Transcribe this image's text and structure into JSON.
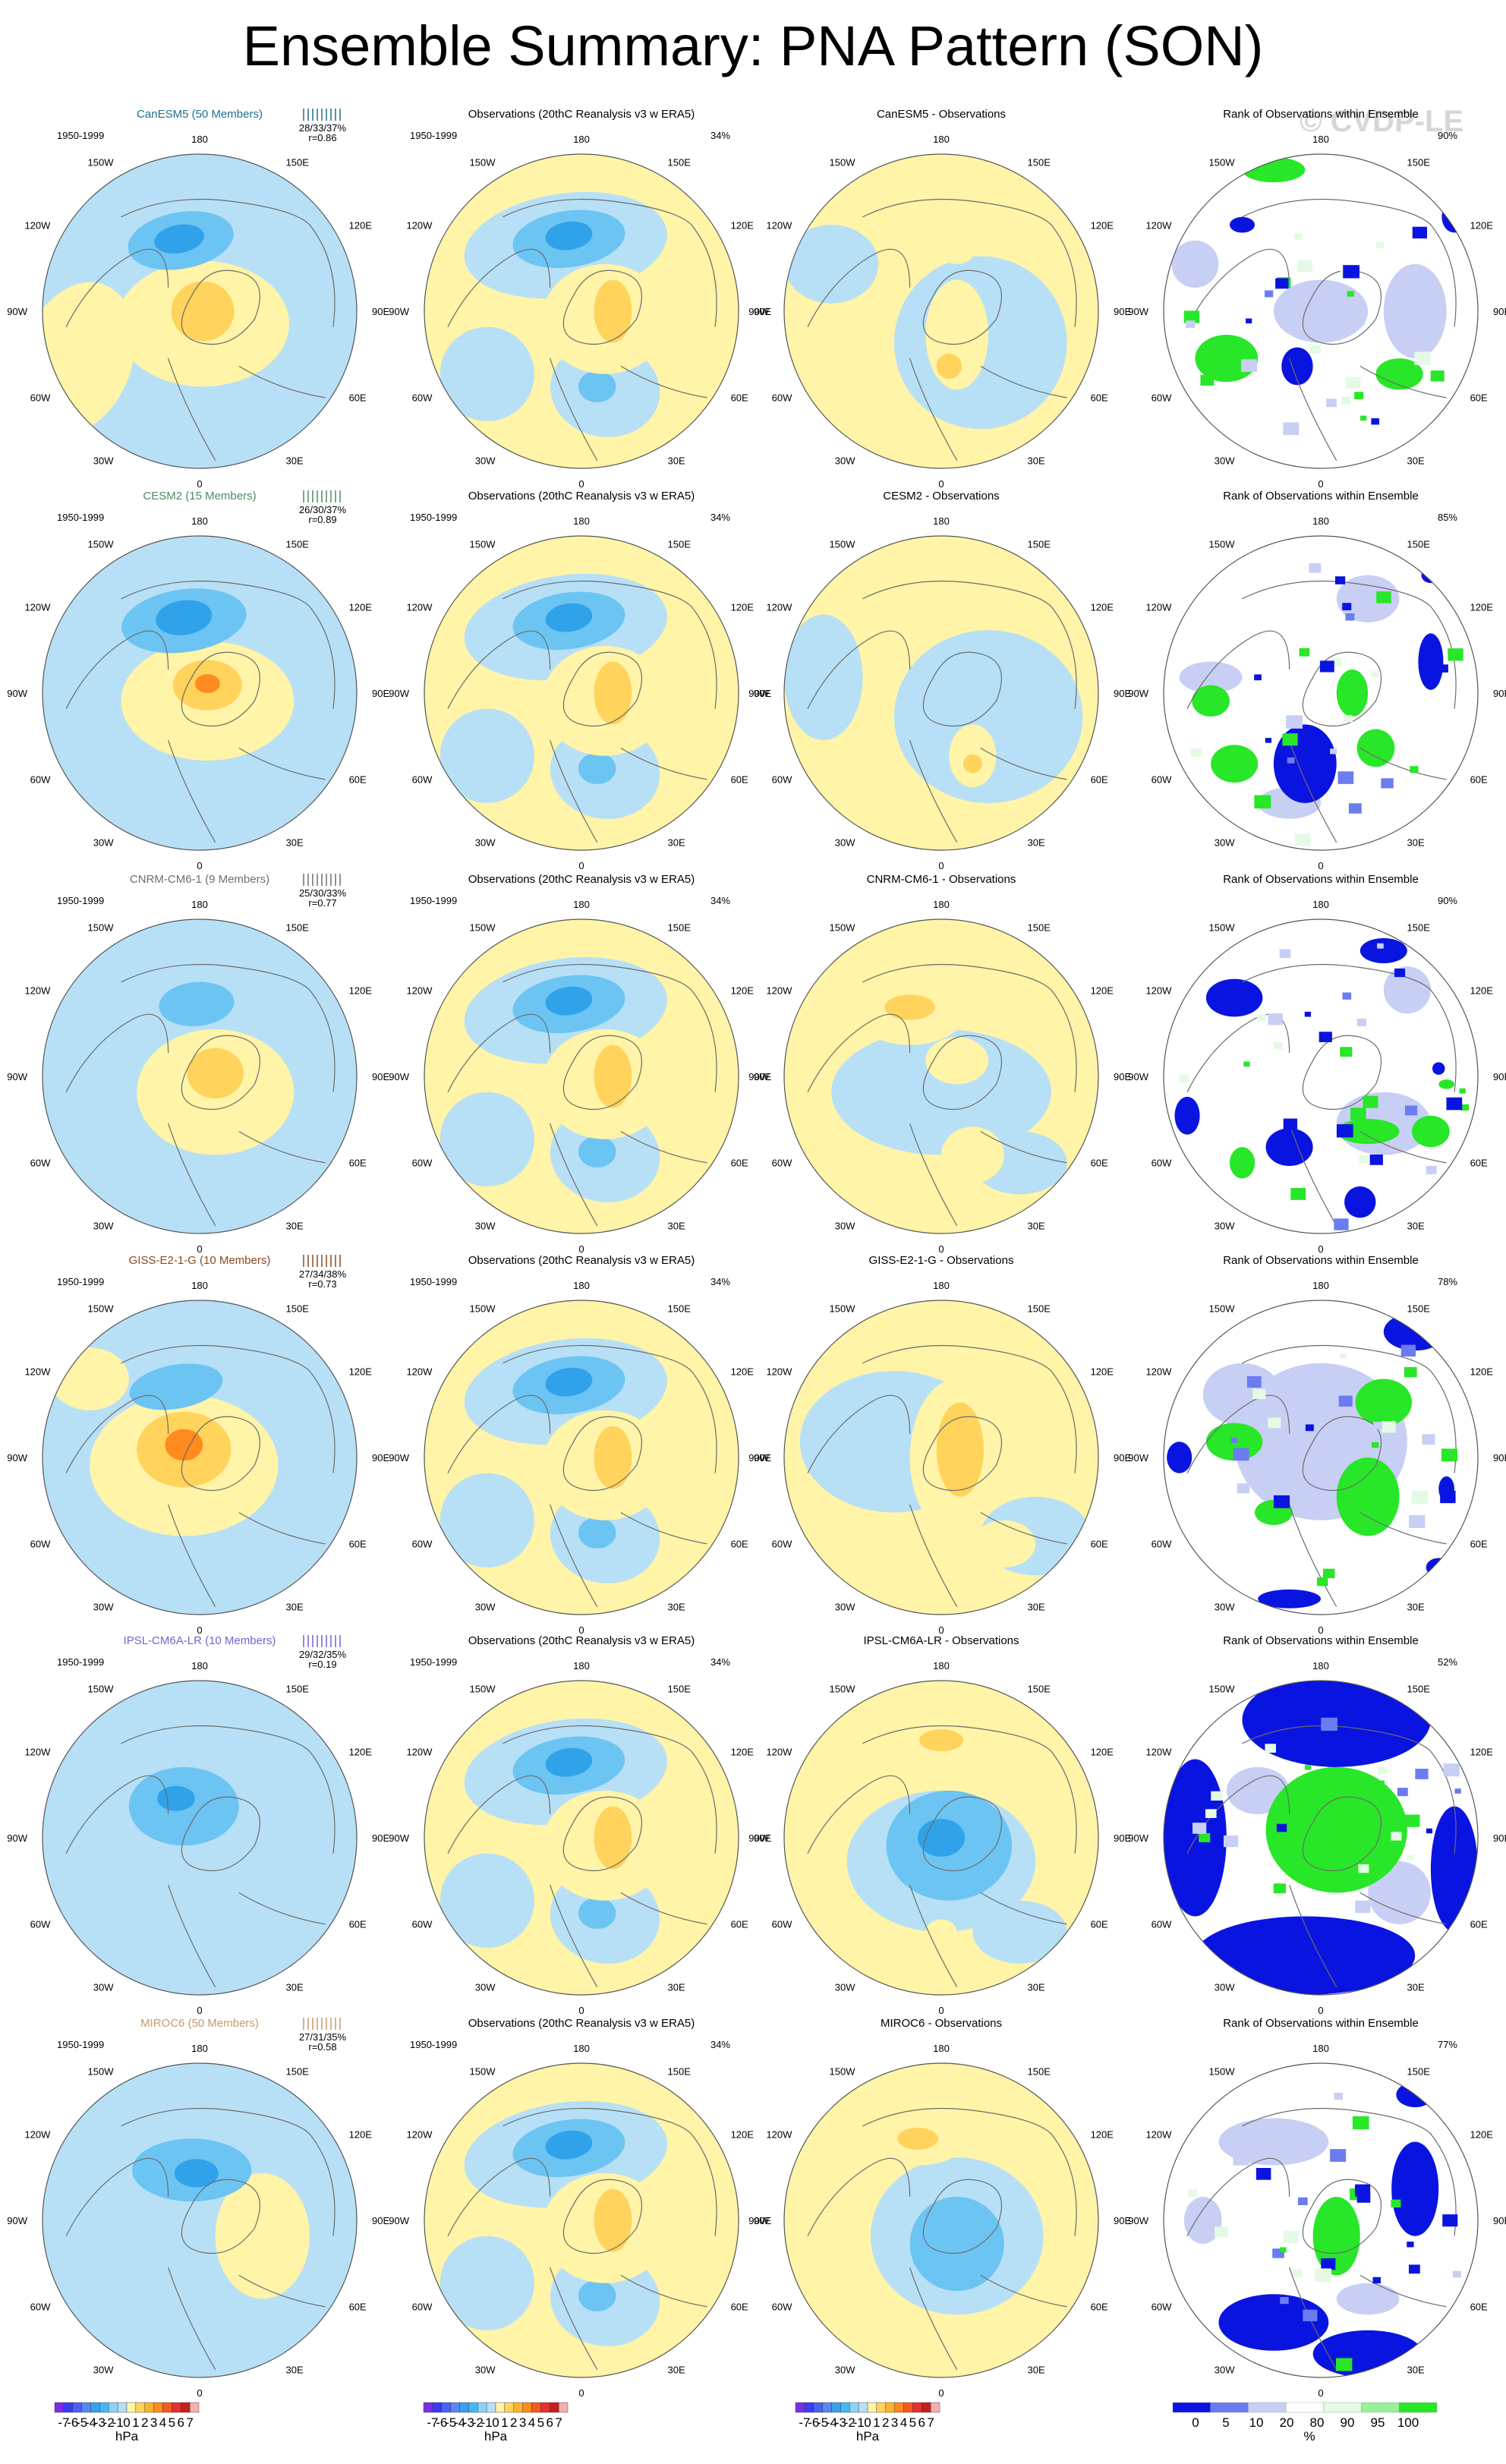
{
  "title": "Ensemble Summary: PNA Pattern (SON)",
  "watermark": "© CVDP-LE",
  "period": "1950-1999",
  "longitude_labels": [
    "180",
    "150E",
    "120E",
    "90E",
    "60E",
    "30E",
    "0",
    "30W",
    "60W",
    "90W",
    "120W",
    "150W"
  ],
  "rows": [
    {
      "model": "CanESM5 (50 Members)",
      "model_color": "#1f6f8b",
      "stats": "28/33/37%",
      "r": "r=0.86",
      "obs_title": "Observations (20thC Reanalysis v3 w ERA5)",
      "obs_pct": "34%",
      "diff_title": "CanESM5 - Observations",
      "rank_title": "Rank of Observations within Ensemble",
      "rank_pct": "90%"
    },
    {
      "model": "CESM2 (15 Members)",
      "model_color": "#4e8a62",
      "stats": "26/30/37%",
      "r": "r=0.89",
      "obs_title": "Observations (20thC Reanalysis v3 w ERA5)",
      "obs_pct": "34%",
      "diff_title": "CESM2 - Observations",
      "rank_title": "Rank of Observations within Ensemble",
      "rank_pct": "85%"
    },
    {
      "model": "CNRM-CM6-1 (9 Members)",
      "model_color": "#6f6f6f",
      "stats": "25/30/33%",
      "r": "r=0.77",
      "obs_title": "Observations (20thC Reanalysis v3 w ERA5)",
      "obs_pct": "34%",
      "diff_title": "CNRM-CM6-1 - Observations",
      "rank_title": "Rank of Observations within Ensemble",
      "rank_pct": "90%"
    },
    {
      "model": "GISS-E2-1-G (10 Members)",
      "model_color": "#8a4a1e",
      "stats": "27/34/38%",
      "r": "r=0.73",
      "obs_title": "Observations (20thC Reanalysis v3 w ERA5)",
      "obs_pct": "34%",
      "diff_title": "GISS-E2-1-G - Observations",
      "rank_title": "Rank of Observations within Ensemble",
      "rank_pct": "78%"
    },
    {
      "model": "IPSL-CM6A-LR (10 Members)",
      "model_color": "#7a5fd0",
      "stats": "29/32/35%",
      "r": "r=0.19",
      "obs_title": "Observations (20thC Reanalysis v3 w ERA5)",
      "obs_pct": "34%",
      "diff_title": "IPSL-CM6A-LR - Observations",
      "rank_title": "Rank of Observations within Ensemble",
      "rank_pct": "52%"
    },
    {
      "model": "MIROC6 (50 Members)",
      "model_color": "#c49a6c",
      "stats": "27/31/35%",
      "r": "r=0.58",
      "obs_title": "Observations (20thC Reanalysis v3 w ERA5)",
      "obs_pct": "34%",
      "diff_title": "MIROC6 - Observations",
      "rank_title": "Rank of Observations within Ensemble",
      "rank_pct": "77%"
    }
  ],
  "legend_hpa": {
    "labels": [
      "-7",
      "-6",
      "-5",
      "-4",
      "-3",
      "-2",
      "-1",
      "0",
      "1",
      "2",
      "3",
      "4",
      "5",
      "6",
      "7"
    ],
    "colors": [
      "#7b2ee6",
      "#3c3cf0",
      "#4a62f2",
      "#5a86f4",
      "#3aa0ee",
      "#44b8f4",
      "#8fd2f6",
      "#b7e0f6",
      "#fff4a8",
      "#ffd35c",
      "#ffb22c",
      "#ff8a1e",
      "#f45a1e",
      "#e63030",
      "#c81e1e",
      "#f4b0b0"
    ],
    "unit": "hPa"
  },
  "legend_rank": {
    "labels": [
      "0",
      "5",
      "10",
      "20",
      "80",
      "90",
      "95",
      "100"
    ],
    "colors": [
      "#0a14e0",
      "#6a7cf0",
      "#c8cff4",
      "#ffffff",
      "#e4fae4",
      "#98f098",
      "#28e628"
    ],
    "unit": "%"
  },
  "colors": {
    "neg_light": "#b7e0f6",
    "neg_mid": "#6cc4f2",
    "neg_strong": "#2fa2ea",
    "neg_deep": "#1c86e2",
    "pos_light": "#fff4a8",
    "pos_mid": "#ffd35c",
    "pos_strong": "#ffb22c",
    "pos_deep": "#ff8a1e",
    "rank_low": "#0a14e0",
    "rank_lowmid": "#6a7cf0",
    "rank_lowlight": "#c8cff4",
    "rank_highlight": "#e4fae4",
    "rank_high": "#28e628"
  }
}
